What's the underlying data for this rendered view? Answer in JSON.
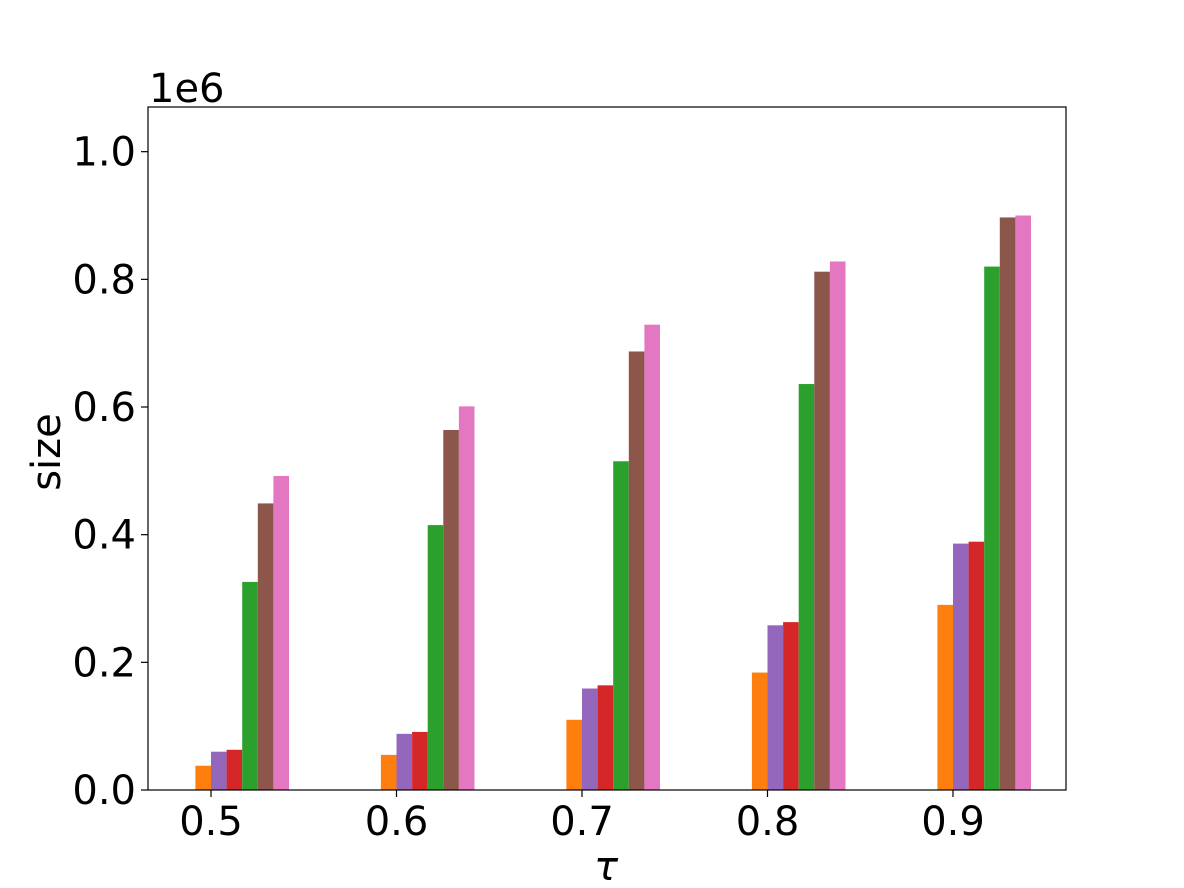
{
  "chart_data": {
    "type": "bar",
    "title": "",
    "xlabel": "τ",
    "ylabel": "size",
    "y_offset_label": "1e6",
    "categories": [
      "0.5",
      "0.6",
      "0.7",
      "0.8",
      "0.9"
    ],
    "ylim": [
      0,
      1.07
    ],
    "yticks": [
      "0.0",
      "0.2",
      "0.4",
      "0.6",
      "0.8",
      "1.0"
    ],
    "grid": false,
    "legend": "none",
    "series": [
      {
        "color": "#ff7f0e",
        "values": [
          0.038,
          0.055,
          0.11,
          0.184,
          0.29
        ]
      },
      {
        "color": "#9467bd",
        "values": [
          0.06,
          0.088,
          0.159,
          0.258,
          0.386
        ]
      },
      {
        "color": "#d62728",
        "values": [
          0.063,
          0.091,
          0.164,
          0.263,
          0.389
        ]
      },
      {
        "color": "#2ca02c",
        "values": [
          0.326,
          0.415,
          0.515,
          0.636,
          0.82
        ]
      },
      {
        "color": "#8c564b",
        "values": [
          0.449,
          0.564,
          0.687,
          0.812,
          0.897
        ]
      },
      {
        "color": "#e377c2",
        "values": [
          0.492,
          0.601,
          0.729,
          0.828,
          0.9
        ]
      }
    ]
  }
}
